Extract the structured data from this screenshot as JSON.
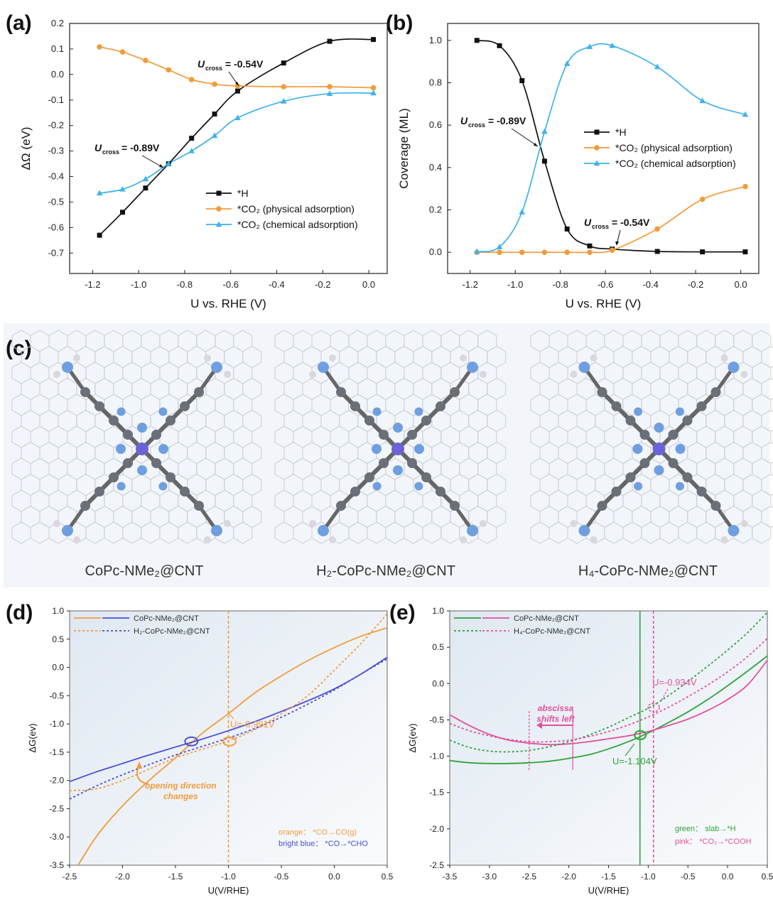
{
  "colors": {
    "black": "#111111",
    "orange": "#f39b3b",
    "blue": "#3fb2ea",
    "green": "#2ea43c",
    "pink": "#e2509f",
    "royal": "#4a4fd6",
    "molecule_bg": "#f2f5f9"
  },
  "panels": {
    "a": "(a)",
    "b": "(b)",
    "c": "(c)",
    "d": "(d)",
    "e": "(e)"
  },
  "panel_c": {
    "labels": [
      "CoPc-NMe₂@CNT",
      "H₂-CoPc-NMe₂@CNT",
      "H₄-CoPc-NMe₂@CNT"
    ]
  },
  "chart_data": [
    {
      "id": "a",
      "type": "line",
      "xlabel": "U vs. RHE (V)",
      "ylabel": "ΔΩ (eV)",
      "xlim": [
        -1.3,
        0.08
      ],
      "ylim": [
        -0.78,
        0.2
      ],
      "xticks": [
        -1.2,
        -1.0,
        -0.8,
        -0.6,
        -0.4,
        -0.2,
        0.0
      ],
      "xtick_labels": [
        "-1.2",
        "-1.0",
        "-0.8",
        "-0.6",
        "-0.4",
        "-0.2",
        "0.0"
      ],
      "yticks": [
        0.2,
        0.1,
        0.0,
        -0.1,
        -0.2,
        -0.3,
        -0.4,
        -0.5,
        -0.6,
        -0.7
      ],
      "ytick_labels": [
        "0.2",
        "0.1",
        "0.0",
        "-0.1",
        "-0.2",
        "-0.3",
        "-0.4",
        "-0.5",
        "-0.6",
        "-0.7"
      ],
      "x": [
        -1.17,
        -1.07,
        -0.97,
        -0.87,
        -0.77,
        -0.67,
        -0.57,
        -0.37,
        -0.17,
        0.02
      ],
      "series": [
        {
          "name": "*H",
          "marker": "square",
          "color": "#111111",
          "values": [
            -0.63,
            -0.54,
            -0.445,
            -0.35,
            -0.25,
            -0.155,
            -0.065,
            0.045,
            0.13,
            0.137
          ]
        },
        {
          "name": "*CO₂ (physical adsorption)",
          "marker": "circle",
          "color": "#f39b3b",
          "values": [
            0.108,
            0.088,
            0.055,
            0.018,
            -0.02,
            -0.038,
            -0.045,
            -0.048,
            -0.048,
            -0.052
          ]
        },
        {
          "name": "*CO₂ (chemical adsorption)",
          "marker": "triangle",
          "color": "#3fb2ea",
          "values": [
            -0.465,
            -0.45,
            -0.41,
            -0.35,
            -0.3,
            -0.24,
            -0.17,
            -0.105,
            -0.075,
            -0.073
          ]
        }
      ],
      "legend": "bottom-right",
      "annotations": [
        "U",
        "cross",
        "= -0.54V",
        "U",
        "cross",
        "= -0.89V"
      ]
    },
    {
      "id": "b",
      "type": "line",
      "xlabel": "U vs. RHE (V)",
      "ylabel": "Coverage (ML)",
      "xlim": [
        -1.3,
        0.08
      ],
      "ylim": [
        -0.1,
        1.08
      ],
      "xticks": [
        -1.2,
        -1.0,
        -0.8,
        -0.6,
        -0.4,
        -0.2,
        0.0
      ],
      "xtick_labels": [
        "-1.2",
        "-1.0",
        "-0.8",
        "-0.6",
        "-0.4",
        "-0.2",
        "0.0"
      ],
      "yticks": [
        0.0,
        0.2,
        0.4,
        0.6,
        0.8,
        1.0
      ],
      "ytick_labels": [
        "0.0",
        "0.2",
        "0.4",
        "0.6",
        "0.8",
        "1.0"
      ],
      "x": [
        -1.17,
        -1.07,
        -0.97,
        -0.87,
        -0.77,
        -0.67,
        -0.57,
        -0.37,
        -0.17,
        0.02
      ],
      "series": [
        {
          "name": "*H",
          "marker": "square",
          "color": "#111111",
          "values": [
            1.0,
            0.975,
            0.81,
            0.43,
            0.11,
            0.03,
            0.015,
            0.004,
            0.002,
            0.002
          ]
        },
        {
          "name": "*CO₂ (physical adsorption)",
          "marker": "circle",
          "color": "#f39b3b",
          "values": [
            0.0,
            0.0,
            0.0,
            0.0,
            0.0,
            0.0,
            0.01,
            0.11,
            0.25,
            0.31
          ]
        },
        {
          "name": "*CO₂ (chemical adsorption)",
          "marker": "triangle",
          "color": "#3fb2ea",
          "values": [
            0.003,
            0.025,
            0.19,
            0.57,
            0.89,
            0.97,
            0.975,
            0.875,
            0.715,
            0.65
          ]
        }
      ],
      "legend": "center-right",
      "annotations": [
        "U",
        "cross",
        "= -0.89V",
        "U",
        "cross",
        "= -0.54V"
      ]
    },
    {
      "id": "d",
      "type": "line",
      "xlabel": "U(V/RHE)",
      "ylabel": "ΔG(ev)",
      "xlim": [
        -2.5,
        0.5
      ],
      "ylim": [
        -3.5,
        1.0
      ],
      "xticks": [
        -2.5,
        -2.0,
        -1.5,
        -1.0,
        -0.5,
        0.0,
        0.5
      ],
      "xtick_labels": [
        "-2.5",
        "-2.0",
        "-1.5",
        "-1.0",
        "-0.5",
        "0.0",
        "0.5"
      ],
      "yticks": [
        1.0,
        0.5,
        0.0,
        -0.5,
        -1.0,
        -1.5,
        -2.0,
        -2.5,
        -3.0,
        -3.5
      ],
      "ytick_labels": [
        "1.0",
        "0.5",
        "0.0",
        "-0.5",
        "-1.0",
        "-1.5",
        "-2.0",
        "-2.5",
        "-3.0",
        "-3.5"
      ],
      "x": [
        -2.5,
        -2.25,
        -2.0,
        -1.75,
        -1.5,
        -1.25,
        -1.0,
        -0.75,
        -0.5,
        -0.25,
        0.0,
        0.25,
        0.5
      ],
      "series": [
        {
          "name": "CoPc-NMe₂@CNT",
          "style": "solid",
          "color": "#f39b3b",
          "values": [
            -3.75,
            -3.0,
            -2.45,
            -2.0,
            -1.6,
            -1.17,
            -0.82,
            -0.45,
            -0.15,
            0.12,
            0.35,
            0.55,
            0.7
          ]
        },
        {
          "name": "CoPc-NMe₂@CNT",
          "style": "solid",
          "color": "#4a4fd6",
          "values": [
            -2.02,
            -1.85,
            -1.7,
            -1.55,
            -1.41,
            -1.27,
            -1.12,
            -0.96,
            -0.78,
            -0.59,
            -0.38,
            -0.12,
            0.18
          ]
        },
        {
          "name": "H₂-CoPc-NMe₂@CNT",
          "style": "dashed",
          "color": "#f39b3b",
          "values": [
            -2.18,
            -2.15,
            -2.0,
            -1.8,
            -1.6,
            -1.45,
            -1.3,
            -1.1,
            -0.82,
            -0.5,
            -0.05,
            0.42,
            0.95
          ]
        },
        {
          "name": "H₂-CoPc-NMe₂@CNT",
          "style": "dashed",
          "color": "#4a4fd6",
          "values": [
            -2.33,
            -2.1,
            -1.9,
            -1.72,
            -1.55,
            -1.4,
            -1.25,
            -1.08,
            -0.88,
            -0.65,
            -0.4,
            -0.12,
            0.15
          ]
        }
      ],
      "vline": -1.0,
      "annotations": [
        "U=-0.991V",
        "opening direction",
        "changes",
        "orange： *CO→CO(g)",
        "bright blue： *CO→*CHO"
      ],
      "legend": "top-left"
    },
    {
      "id": "e",
      "type": "line",
      "xlabel": "U(V/RHE)",
      "ylabel": "ΔG(ev)",
      "xlim": [
        -3.5,
        0.5
      ],
      "ylim": [
        -2.5,
        1.0
      ],
      "xticks": [
        -3.5,
        -3.0,
        -2.5,
        -2.0,
        -1.5,
        -1.0,
        -0.5,
        0.0,
        0.5
      ],
      "xtick_labels": [
        "-3.5",
        "-3.0",
        "-2.5",
        "-2.0",
        "-1.5",
        "-1.0",
        "-0.5",
        "0.0",
        "0.5"
      ],
      "yticks": [
        1.0,
        0.5,
        0.0,
        -0.5,
        -1.0,
        -1.5,
        -2.0,
        -2.5
      ],
      "ytick_labels": [
        "1.0",
        "0.5",
        "0.0",
        "-0.5",
        "-1.0",
        "-1.5",
        "-2.0",
        "-2.5"
      ],
      "x": [
        -3.5,
        -3.25,
        -3.0,
        -2.75,
        -2.5,
        -2.25,
        -2.0,
        -1.75,
        -1.5,
        -1.25,
        -1.0,
        -0.75,
        -0.5,
        -0.25,
        0.0,
        0.25,
        0.5
      ],
      "series": [
        {
          "name": "CoPc-NMe₂@CNT",
          "style": "solid",
          "color": "#2ea43c",
          "values": [
            -1.06,
            -1.09,
            -1.1,
            -1.1,
            -1.09,
            -1.07,
            -1.03,
            -0.98,
            -0.9,
            -0.8,
            -0.68,
            -0.54,
            -0.39,
            -0.22,
            -0.03,
            0.17,
            0.38
          ]
        },
        {
          "name": "CoPc-NMe₂@CNT",
          "style": "solid",
          "color": "#e2509f",
          "values": [
            -0.43,
            -0.58,
            -0.7,
            -0.78,
            -0.82,
            -0.84,
            -0.83,
            -0.8,
            -0.76,
            -0.72,
            -0.66,
            -0.58,
            -0.49,
            -0.37,
            -0.22,
            -0.02,
            0.32
          ]
        },
        {
          "name": "H₄-CoPc-NMe₂@CNT",
          "style": "dashed",
          "color": "#2ea43c",
          "values": [
            -0.78,
            -0.88,
            -0.93,
            -0.94,
            -0.92,
            -0.87,
            -0.8,
            -0.71,
            -0.6,
            -0.47,
            -0.34,
            -0.17,
            0.03,
            0.24,
            0.46,
            0.7,
            0.98
          ]
        },
        {
          "name": "H₄-CoPc-NMe₂@CNT",
          "style": "dashed",
          "color": "#e2509f",
          "values": [
            -0.55,
            -0.65,
            -0.72,
            -0.77,
            -0.8,
            -0.8,
            -0.78,
            -0.73,
            -0.66,
            -0.57,
            -0.46,
            -0.33,
            -0.18,
            -0.02,
            0.16,
            0.37,
            0.62
          ]
        }
      ],
      "vlines": [
        -1.104,
        -0.934
      ],
      "annotations": [
        "U=-0.934V",
        "U=-1.104V",
        "abscissa",
        "shifts left",
        "green： slab→*H",
        "pink： *CO₂→*COOH"
      ],
      "legend": "top-left"
    }
  ]
}
